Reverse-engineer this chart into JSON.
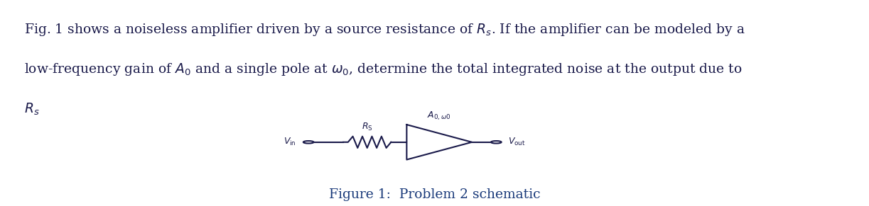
{
  "bg_color": "#ffffff",
  "text_color": "#1a1a4a",
  "caption_color": "#1a3a7a",
  "fig_width": 12.23,
  "fig_height": 2.91,
  "line1": "Fig. 1 shows a noiseless amplifier driven by a source resistance of $R_s$. If the amplifier can be modeled by a",
  "line2": "low-frequency gain of $A_0$ and a single pole at $\\omega_0$, determine the total integrated noise at the output due to",
  "line3": "$R_s$",
  "figure_caption": "Figure 1:  Problem 2 schematic",
  "text_fontsize": 13.5,
  "caption_fontsize": 13.5,
  "schematic_color": "#1a1a4a",
  "lw": 1.5
}
